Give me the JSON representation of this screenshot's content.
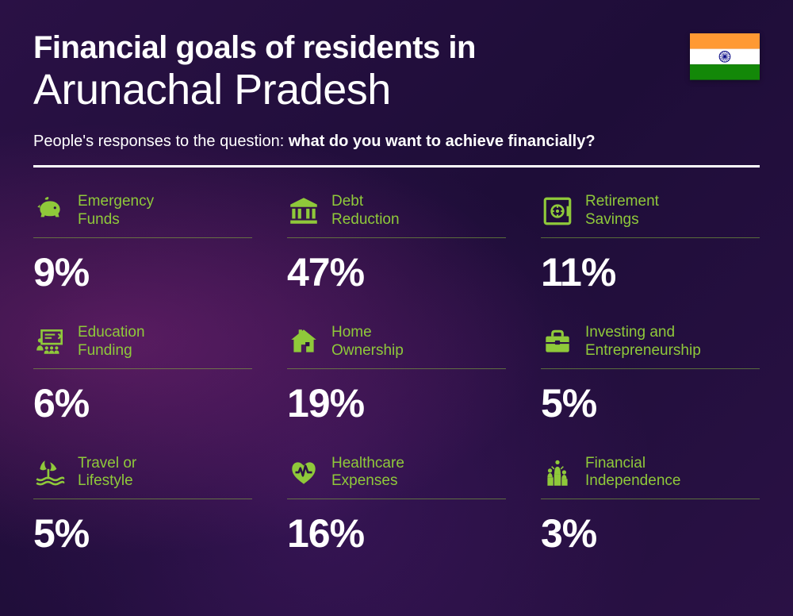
{
  "title_line1": "Financial goals of residents in",
  "title_line2": "Arunachal Pradesh",
  "subtitle_prefix": "People's responses to the question: ",
  "subtitle_bold": "what do you want to achieve financially?",
  "accent_color": "#8fc93a",
  "text_color": "#ffffff",
  "flag": {
    "stripe_top": "#ff9933",
    "stripe_mid": "#ffffff",
    "stripe_bot": "#138808",
    "chakra": "#000080"
  },
  "items": [
    {
      "label": "Emergency\nFunds",
      "value": "9%",
      "icon": "piggy"
    },
    {
      "label": "Debt\nReduction",
      "value": "47%",
      "icon": "bank"
    },
    {
      "label": "Retirement\nSavings",
      "value": "11%",
      "icon": "safe"
    },
    {
      "label": "Education\nFunding",
      "value": "6%",
      "icon": "education"
    },
    {
      "label": "Home\nOwnership",
      "value": "19%",
      "icon": "home"
    },
    {
      "label": "Investing and\nEntrepreneurship",
      "value": "5%",
      "icon": "briefcase"
    },
    {
      "label": "Travel or\nLifestyle",
      "value": "5%",
      "icon": "travel"
    },
    {
      "label": "Healthcare\nExpenses",
      "value": "16%",
      "icon": "health"
    },
    {
      "label": "Financial\nIndependence",
      "value": "3%",
      "icon": "independence"
    }
  ]
}
